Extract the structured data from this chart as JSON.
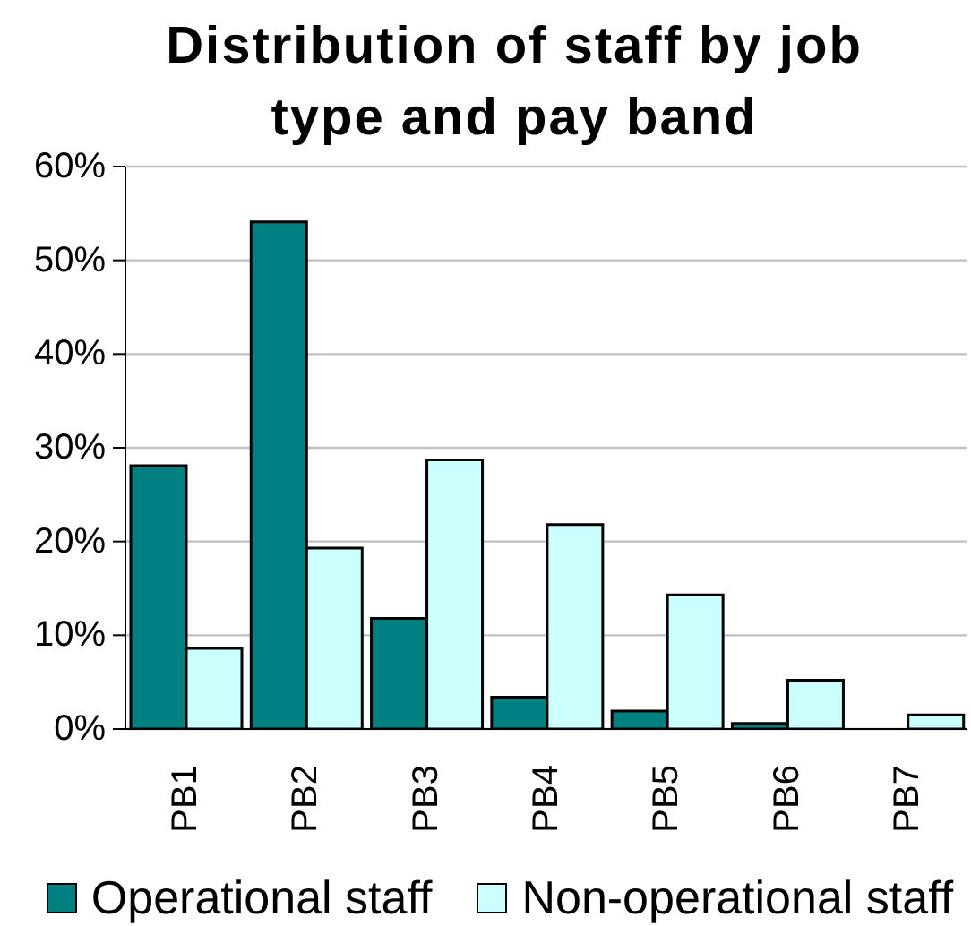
{
  "chart_data": {
    "type": "bar",
    "title": "Distribution of staff by job type and pay band",
    "categories": [
      "PB1",
      "PB2",
      "PB3",
      "PB4",
      "PB5",
      "PB6",
      "PB7"
    ],
    "series": [
      {
        "name": "Operational staff",
        "color": "#008080",
        "values": [
          28.1,
          54.1,
          11.8,
          3.4,
          1.9,
          0.6,
          0
        ]
      },
      {
        "name": "Non-operational staff",
        "color": "#ccffff",
        "values": [
          8.6,
          19.3,
          28.7,
          21.8,
          14.3,
          5.2,
          1.5
        ]
      }
    ],
    "ylim": [
      0,
      60
    ],
    "yticks": [
      {
        "value": 0,
        "label": "0%"
      },
      {
        "value": 10,
        "label": "10%"
      },
      {
        "value": 20,
        "label": "20%"
      },
      {
        "value": 30,
        "label": "30%"
      },
      {
        "value": 40,
        "label": "40%"
      },
      {
        "value": 50,
        "label": "50%"
      },
      {
        "value": 60,
        "label": "60%"
      }
    ],
    "grid": "y",
    "legend": "bottom"
  }
}
